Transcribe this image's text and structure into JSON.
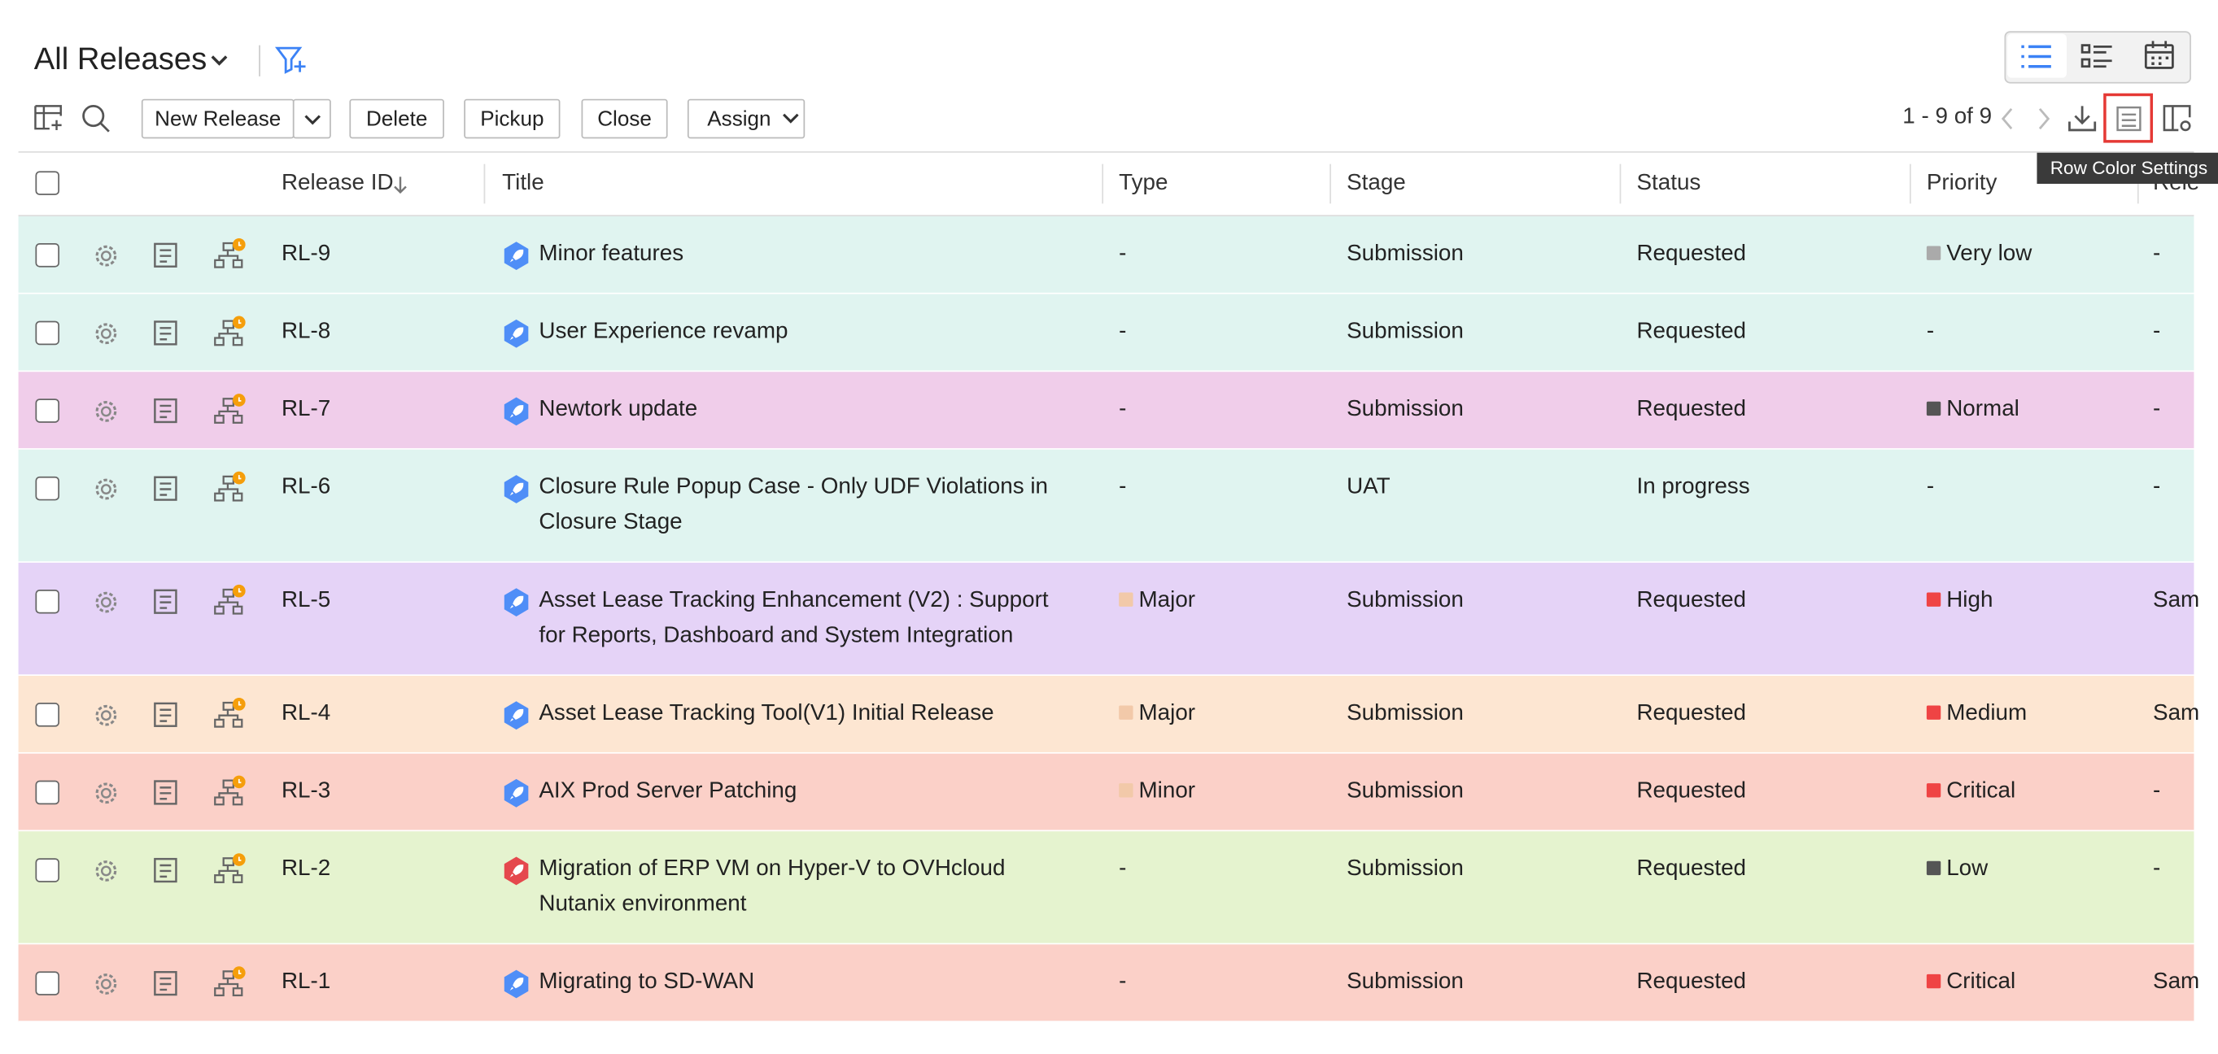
{
  "header": {
    "title": "All Releases"
  },
  "toolbar": {
    "buttons": [
      "New Release",
      "Delete",
      "Pickup",
      "Close",
      "Assign"
    ],
    "pagination": "1 - 9 of 9",
    "tooltip": "Row Color Settings"
  },
  "table": {
    "columns": [
      "Release ID",
      "Title",
      "Type",
      "Stage",
      "Status",
      "Priority",
      "Rele"
    ],
    "rows": [
      {
        "id": "RL-9",
        "title": "Minor features",
        "type": "-",
        "stage": "Submission",
        "status": "Requested",
        "priority": "Very low",
        "priority_color": "#aaaaaa",
        "extra": "-",
        "row_color": "#e0f4f0",
        "icon_color": "#4f8ef7"
      },
      {
        "id": "RL-8",
        "title": "User Experience revamp",
        "type": "-",
        "stage": "Submission",
        "status": "Requested",
        "priority": "-",
        "extra": "-",
        "row_color": "#e0f4f0",
        "icon_color": "#4f8ef7"
      },
      {
        "id": "RL-7",
        "title": "Newtork update",
        "type": "-",
        "stage": "Submission",
        "status": "Requested",
        "priority": "Normal",
        "priority_color": "#555555",
        "extra": "-",
        "row_color": "#f0cdea",
        "icon_color": "#4f8ef7"
      },
      {
        "id": "RL-6",
        "title": "Closure Rule Popup Case - Only UDF Violations in Closure Stage",
        "type": "-",
        "stage": "UAT",
        "status": "In progress",
        "priority": "-",
        "extra": "-",
        "row_color": "#e0f4f0",
        "icon_color": "#4f8ef7"
      },
      {
        "id": "RL-5",
        "title": "Asset Lease Tracking Enhancement (V2) : Support for Reports, Dashboard and System Integration",
        "type": "Major",
        "type_color": "#f2c9a9",
        "stage": "Submission",
        "status": "Requested",
        "priority": "High",
        "priority_color": "#ef4444",
        "extra": "Sam",
        "row_color": "#e5d3f7",
        "icon_color": "#4f8ef7"
      },
      {
        "id": "RL-4",
        "title": "Asset Lease Tracking Tool(V1) Initial Release",
        "type": "Major",
        "type_color": "#f2c9a9",
        "stage": "Submission",
        "status": "Requested",
        "priority": "Medium",
        "priority_color": "#ef4444",
        "extra": "Sam",
        "row_color": "#fde6d2",
        "icon_color": "#4f8ef7"
      },
      {
        "id": "RL-3",
        "title": "AIX Prod Server Patching",
        "type": "Minor",
        "type_color": "#f2c9a9",
        "stage": "Submission",
        "status": "Requested",
        "priority": "Critical",
        "priority_color": "#ef4444",
        "extra": "-",
        "row_color": "#fbd0c8",
        "icon_color": "#4f8ef7"
      },
      {
        "id": "RL-2",
        "title": "Migration of ERP VM on Hyper-V to OVHcloud Nutanix environment",
        "type": "-",
        "stage": "Submission",
        "status": "Requested",
        "priority": "Low",
        "priority_color": "#555555",
        "extra": "-",
        "row_color": "#e5f3cf",
        "icon_color": "#e5484d"
      },
      {
        "id": "RL-1",
        "title": "Migrating to SD-WAN",
        "type": "-",
        "stage": "Submission",
        "status": "Requested",
        "priority": "Critical",
        "priority_color": "#ef4444",
        "extra": "Sam",
        "row_color": "#fbd0c8",
        "icon_color": "#4f8ef7"
      }
    ]
  }
}
